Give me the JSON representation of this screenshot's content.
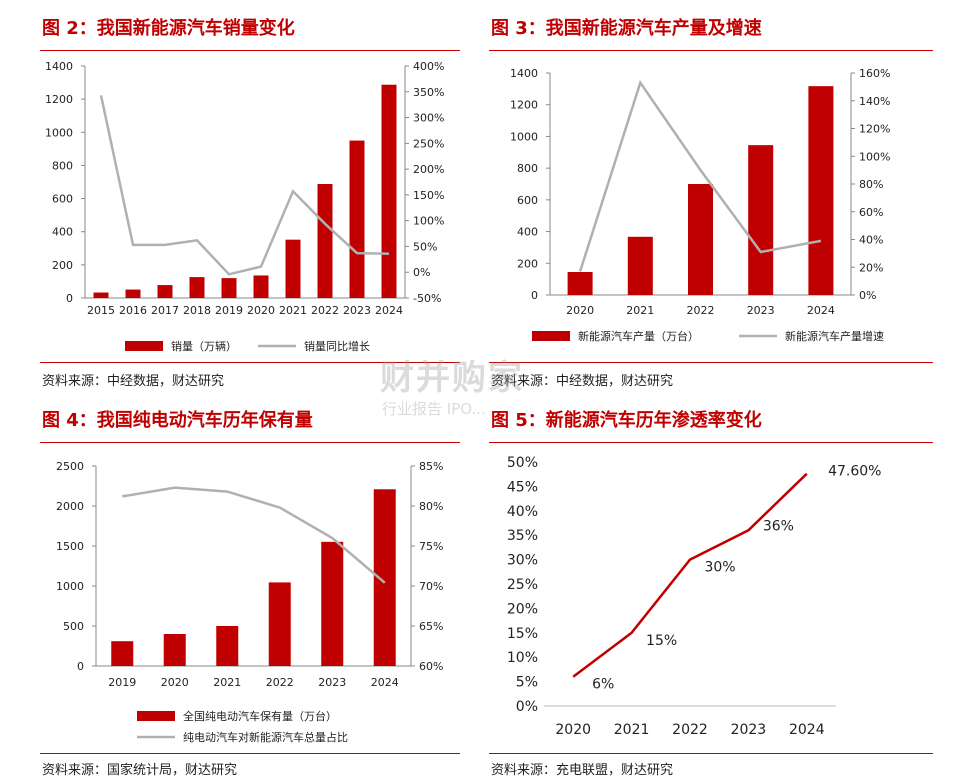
{
  "panels": {
    "fig2": {
      "title": "图 2：我国新能源汽车销量变化",
      "source": "资料来源：中经数据，财达研究"
    },
    "fig3": {
      "title": "图 3：我国新能源汽车产量及增速",
      "source": "资料来源：中经数据，财达研究"
    },
    "fig4": {
      "title": "图 4：我国纯电动汽车历年保有量",
      "source": "资料来源：国家统计局，财达研究"
    },
    "fig5": {
      "title": "图 5：新能源汽车历年渗透率变化",
      "source": "资料来源：充电联盟，财达研究"
    }
  },
  "watermark": {
    "main": "财并购家",
    "sub": "行业报告 IPO..."
  },
  "colors": {
    "bar": "#c00000",
    "line_gray": "#b0b0b0",
    "line_red": "#c00000"
  },
  "chart_data": [
    {
      "id": "fig2",
      "type": "bar",
      "categories": [
        "2015",
        "2016",
        "2017",
        "2018",
        "2019",
        "2020",
        "2021",
        "2022",
        "2023",
        "2024"
      ],
      "series": [
        {
          "name": "销量（万辆）",
          "type": "bar",
          "axis": "left",
          "values": [
            33,
            51,
            78,
            126,
            120,
            136,
            352,
            688,
            950,
            1287
          ]
        },
        {
          "name": "销量同比增长",
          "type": "line",
          "axis": "right",
          "values": [
            343,
            53,
            53,
            62,
            -4,
            11,
            157,
            94,
            37,
            36
          ]
        }
      ],
      "y_left": {
        "min": 0,
        "max": 1400,
        "step": 200,
        "ticks": [
          "0",
          "200",
          "400",
          "600",
          "800",
          "1000",
          "1200",
          "1400"
        ]
      },
      "y_right": {
        "min": -50,
        "max": 400,
        "step": 50,
        "ticks": [
          "-50%",
          "0%",
          "50%",
          "100%",
          "150%",
          "200%",
          "250%",
          "300%",
          "350%",
          "400%"
        ]
      }
    },
    {
      "id": "fig3",
      "type": "bar",
      "categories": [
        "2020",
        "2021",
        "2022",
        "2023",
        "2024"
      ],
      "series": [
        {
          "name": "新能源汽车产量（万台）",
          "type": "bar",
          "axis": "left",
          "values": [
            145,
            367,
            700,
            945,
            1317
          ]
        },
        {
          "name": "新能源汽车产量增速",
          "type": "line",
          "axis": "right",
          "values": [
            17,
            153,
            90,
            31,
            39
          ]
        }
      ],
      "y_left": {
        "min": 0,
        "max": 1400,
        "step": 200,
        "ticks": [
          "0",
          "200",
          "400",
          "600",
          "800",
          "1000",
          "1200",
          "1400"
        ]
      },
      "y_right": {
        "min": 0,
        "max": 160,
        "step": 20,
        "ticks": [
          "0%",
          "20%",
          "40%",
          "60%",
          "80%",
          "100%",
          "120%",
          "140%",
          "160%"
        ]
      }
    },
    {
      "id": "fig4",
      "type": "bar",
      "categories": [
        "2019",
        "2020",
        "2021",
        "2022",
        "2023",
        "2024"
      ],
      "series": [
        {
          "name": "全国纯电动汽车保有量（万台）",
          "type": "bar",
          "axis": "left",
          "values": [
            310,
            400,
            500,
            1045,
            1552,
            2209
          ]
        },
        {
          "name": "纯电动汽车对新能源汽车总量占比",
          "type": "line",
          "axis": "right",
          "values": [
            81.2,
            82.3,
            81.8,
            79.8,
            76.0,
            70.4
          ]
        }
      ],
      "y_left": {
        "min": 0,
        "max": 2500,
        "step": 500,
        "ticks": [
          "0",
          "500",
          "1000",
          "1500",
          "2000",
          "2500"
        ]
      },
      "y_right": {
        "min": 60,
        "max": 85,
        "step": 5,
        "ticks": [
          "60%",
          "65%",
          "70%",
          "75%",
          "80%",
          "85%"
        ]
      }
    },
    {
      "id": "fig5",
      "type": "line",
      "categories": [
        "2020",
        "2021",
        "2022",
        "2023",
        "2024"
      ],
      "series": [
        {
          "name": "",
          "values": [
            6,
            15,
            30,
            36,
            47.6
          ],
          "labels": [
            "6%",
            "15%",
            "30%",
            "36%",
            "47.60%"
          ]
        }
      ],
      "y": {
        "min": 0,
        "max": 50,
        "step": 5,
        "ticks": [
          "0%",
          "5%",
          "10%",
          "15%",
          "20%",
          "25%",
          "30%",
          "35%",
          "40%",
          "45%",
          "50%"
        ]
      }
    }
  ]
}
